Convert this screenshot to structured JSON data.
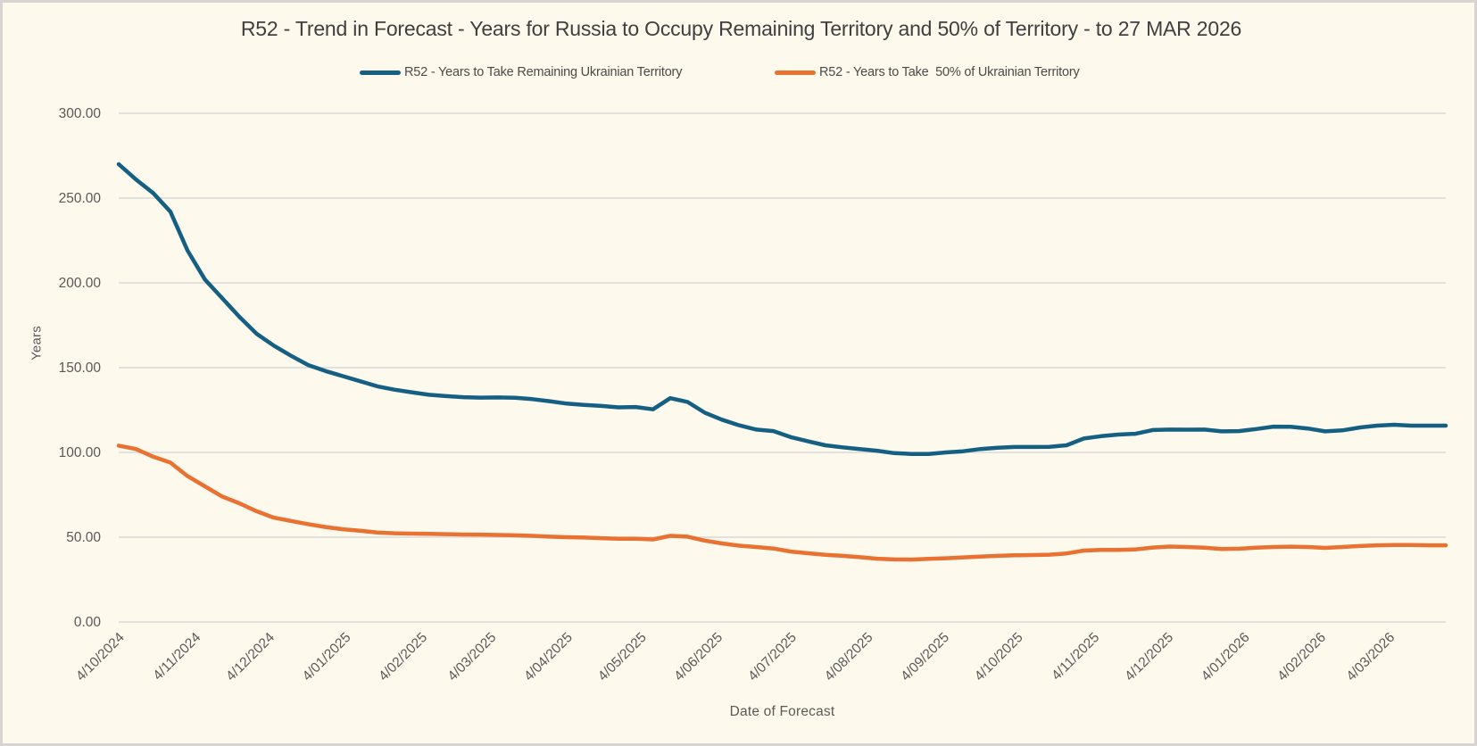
{
  "chart_data": {
    "type": "line",
    "title": "R52 - Trend in Forecast - Years for Russia to Occupy Remaining Territory and 50% of Territory - to 27 MAR 2026",
    "xlabel": "Date of Forecast",
    "ylabel": "Years",
    "ylim": [
      0,
      300
    ],
    "grid": true,
    "legend_position": "top",
    "y_tick_labels": [
      "300.00",
      "250.00",
      "200.00",
      "150.00",
      "100.00",
      "50.00",
      "0.00"
    ],
    "y_tick_values": [
      300,
      250,
      200,
      150,
      100,
      50,
      0
    ],
    "x_tick_labels": [
      "4/10/2024",
      "4/11/2024",
      "4/12/2024",
      "4/01/2025",
      "4/02/2025",
      "4/03/2025",
      "4/04/2025",
      "4/05/2025",
      "4/06/2025",
      "4/07/2025",
      "4/08/2025",
      "4/09/2025",
      "4/10/2025",
      "4/11/2025",
      "4/12/2025",
      "4/01/2026",
      "4/02/2026",
      "4/03/2026"
    ],
    "x_tick_week_offsets": [
      0,
      4.43,
      8.71,
      13.14,
      17.57,
      21.57,
      26,
      30.29,
      34.71,
      39,
      43.43,
      47.86,
      52.14,
      56.57,
      60.86,
      65.29,
      69.71,
      73.71
    ],
    "x_start_label": "4/10/2024",
    "x_end_note": "27 MAR 2026",
    "points_interval": "weekly",
    "weeks_span": 77,
    "grid_color": "#D9D9D9",
    "series": [
      {
        "name": "R52 - Years to Take Remaining Ukrainian Territory",
        "color": "#156082",
        "values": [
          270,
          261,
          253,
          242,
          219,
          202,
          191,
          180,
          170,
          163,
          157,
          151.5,
          148,
          145,
          142,
          139,
          137,
          135.5,
          134,
          133.2,
          132.6,
          132.3,
          132.4,
          132.2,
          131.4,
          130.2,
          128.8,
          128,
          127.4,
          126.6,
          126.8,
          125.4,
          132,
          129.8,
          123.5,
          119.3,
          116,
          113.5,
          112.6,
          109,
          106.5,
          104.2,
          103,
          102,
          101,
          99.6,
          99.1,
          99.1,
          100,
          100.7,
          102,
          102.8,
          103.2,
          103.2,
          103.3,
          104.2,
          108.2,
          109.6,
          110.5,
          111,
          113.2,
          113.5,
          113.4,
          113.5,
          112.4,
          112.6,
          113.8,
          115.2,
          115.1,
          114.1,
          112.4,
          113,
          114.7,
          115.8,
          116.3,
          115.8,
          115.8,
          115.8
        ]
      },
      {
        "name": "R52 - Years to Take  50% of Ukrainian Territory",
        "color": "#E97132",
        "values": [
          104,
          102,
          97.5,
          94,
          86,
          80,
          74,
          70,
          65.3,
          61.5,
          59.6,
          57.7,
          56,
          54.7,
          53.8,
          52.8,
          52.3,
          52.1,
          52,
          51.8,
          51.6,
          51.5,
          51.3,
          51.1,
          50.8,
          50.3,
          50,
          49.8,
          49.4,
          49.1,
          49.1,
          48.7,
          50.8,
          50.3,
          48,
          46.3,
          45,
          44.2,
          43.3,
          41.5,
          40.5,
          39.6,
          39,
          38.2,
          37.3,
          36.9,
          36.8,
          37.2,
          37.6,
          38.1,
          38.6,
          39,
          39.3,
          39.5,
          39.7,
          40.4,
          42.1,
          42.5,
          42.5,
          42.8,
          43.9,
          44.5,
          44.2,
          43.8,
          43,
          43.2,
          43.8,
          44.2,
          44.4,
          44.2,
          43.7,
          44.2,
          44.8,
          45.2,
          45.4,
          45.4,
          45.2,
          45.2
        ]
      }
    ]
  },
  "colors": {
    "background": "#FDF9EC",
    "frame_border": "#D8D4D2",
    "title_text": "#3F3F3F",
    "axis_text": "#595959",
    "gridline": "#D9D9D9",
    "series_remaining": "#156082",
    "series_fifty_pct": "#E97132"
  }
}
